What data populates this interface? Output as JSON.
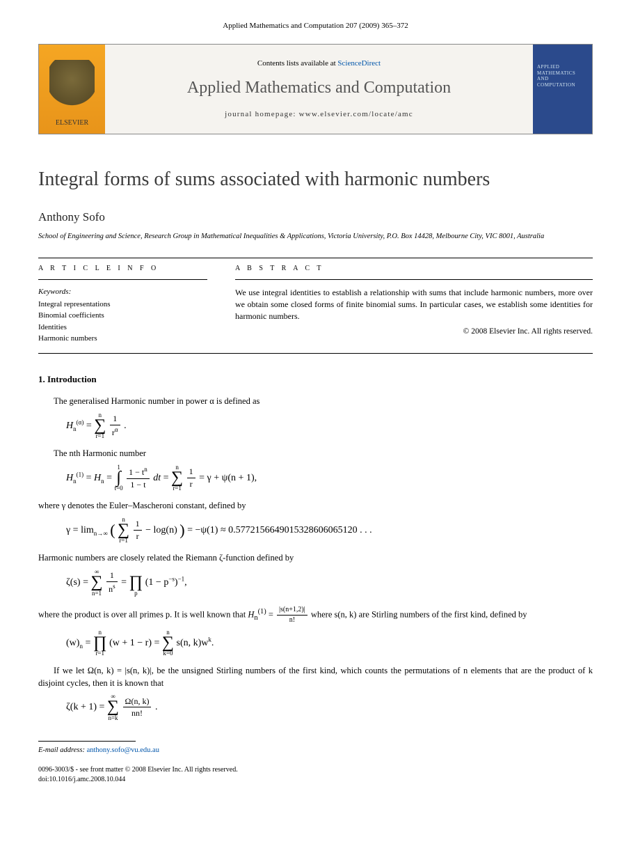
{
  "header_citation": "Applied Mathematics and Computation 207 (2009) 365–372",
  "masthead": {
    "publisher": "ELSEVIER",
    "contents_prefix": "Contents lists available at ",
    "contents_link": "ScienceDirect",
    "journal": "Applied Mathematics and Computation",
    "homepage_label": "journal homepage: www.elsevier.com/locate/amc",
    "cover_title": "APPLIED MATHEMATICS AND COMPUTATION"
  },
  "paper": {
    "title": "Integral forms of sums associated with harmonic numbers",
    "author": "Anthony Sofo",
    "affiliation": "School of Engineering and Science, Research Group in Mathematical Inequalities & Applications, Victoria University, P.O. Box 14428, Melbourne City, VIC 8001, Australia"
  },
  "info": {
    "heading": "A R T I C L E   I N F O",
    "keywords_label": "Keywords:",
    "keywords": [
      "Integral representations",
      "Binomial coefficients",
      "Identities",
      "Harmonic numbers"
    ]
  },
  "abstract": {
    "heading": "A B S T R A C T",
    "text": "We use integral identities to establish a relationship with sums that include harmonic numbers, more over we obtain some closed forms of finite binomial sums. In particular cases, we establish some identities for harmonic numbers.",
    "copyright": "© 2008 Elsevier Inc. All rights reserved."
  },
  "sections": {
    "intro_heading": "1. Introduction",
    "p1": "The generalised Harmonic number in power α is defined as",
    "p2": "The nth Harmonic number",
    "p3": "where γ denotes the Euler–Mascheroni constant, defined by",
    "euler_value": "≈ 0.5772156649015328606065120 . . .",
    "p4": "Harmonic numbers are closely related the Riemann ζ-function defined by",
    "p5a": "where the product is over all primes p. It is well known that ",
    "p5b": " where s(n, k) are Stirling numbers of the first kind, defined by",
    "p6": "If we let Ω(n, k) = |s(n, k)|, be the unsigned Stirling numbers of the first kind, which counts the permutations of n elements that are the product of k disjoint cycles, then it is known that"
  },
  "email": {
    "label": "E-mail address: ",
    "address": "anthony.sofo@vu.edu.au"
  },
  "footer": {
    "line1": "0096-3003/$ - see front matter © 2008 Elsevier Inc. All rights reserved.",
    "line2": "doi:10.1016/j.amc.2008.10.044"
  },
  "colors": {
    "link": "#0055aa",
    "elsevier_orange": "#f5a623",
    "cover_blue": "#2b4a8c",
    "text": "#000000",
    "title_gray": "#3b3b3b"
  }
}
